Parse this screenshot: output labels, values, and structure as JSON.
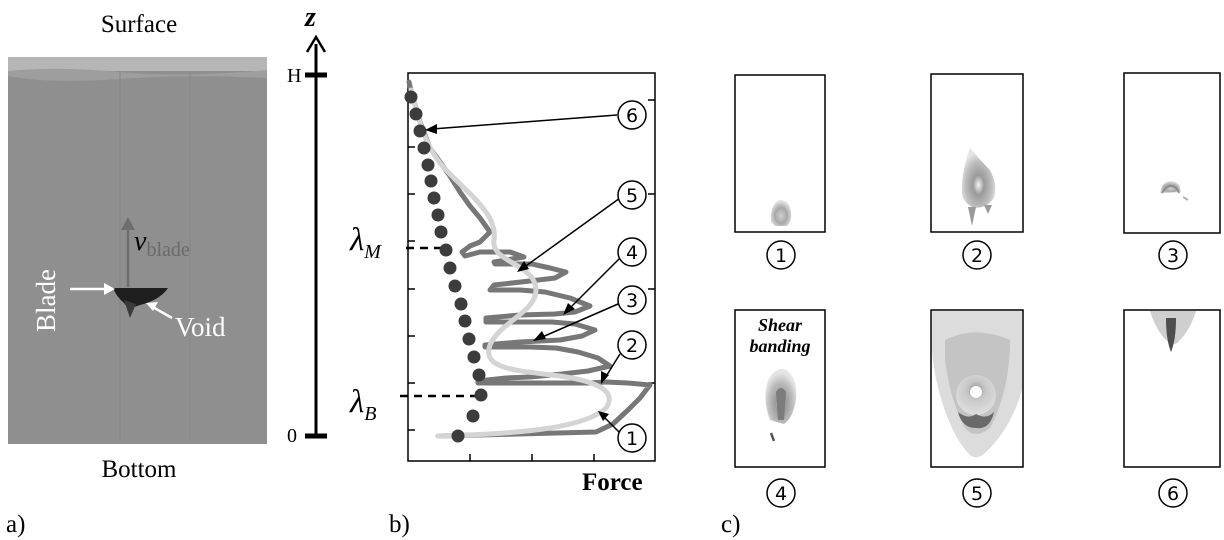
{
  "panel_a": {
    "label": "a)",
    "top_label": "Surface",
    "bottom_label": "Bottom",
    "blade_label": "Blade",
    "void_label": "Void",
    "velocity_symbol": "v",
    "velocity_subscript": "blade"
  },
  "axis": {
    "label": "z",
    "top_tick": "H",
    "bottom_tick": "0"
  },
  "panel_b": {
    "label": "b)",
    "xlabel": "Force",
    "lambda_M": {
      "symbol": "λ",
      "subscript": "M"
    },
    "lambda_B": {
      "symbol": "λ",
      "subscript": "B"
    },
    "markers": [
      "1",
      "2",
      "3",
      "4",
      "5",
      "6"
    ]
  },
  "panel_c": {
    "label": "c)",
    "shear_label_1": "Shear",
    "shear_label_2": "banding",
    "markers": [
      "1",
      "2",
      "3",
      "4",
      "5",
      "6"
    ]
  },
  "colors": {
    "photo": "#8f8f8f",
    "dark_curve": "#777777",
    "light_curve": "#d4d4d4",
    "dots": "#3c3c3c"
  }
}
